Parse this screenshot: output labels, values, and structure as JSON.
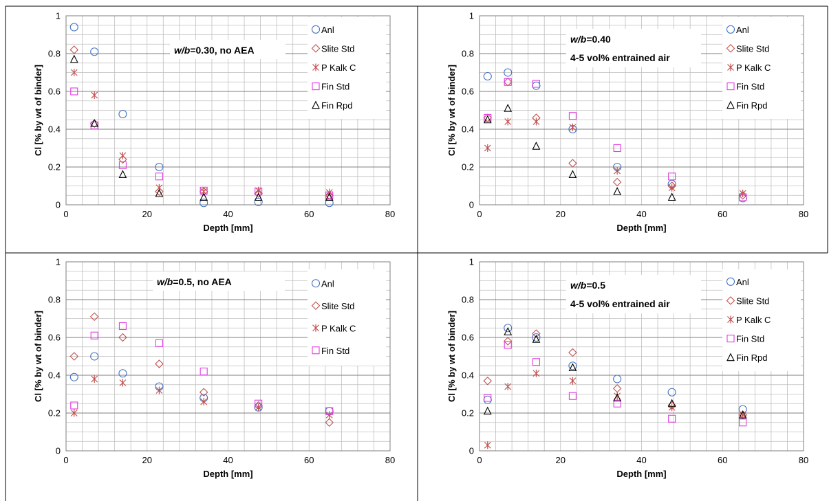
{
  "chart_data": [
    {
      "type": "scatter",
      "annotation": [
        {
          "text": "w/b",
          "italic": true
        },
        {
          "text": "=0.30, no AEA",
          "italic": false
        }
      ],
      "annotation_line2": "",
      "xlabel": "Depth [mm]",
      "ylabel": "Cl [% by wt of binder]",
      "xlim": [
        0,
        80
      ],
      "ylim": [
        0,
        1
      ],
      "xticks": [
        0,
        20,
        40,
        60,
        80
      ],
      "yticks": [
        0,
        0.2,
        0.4,
        0.6,
        0.8,
        1
      ],
      "xtick_labels": [
        "0",
        "20",
        "40",
        "60",
        "80"
      ],
      "ytick_labels": [
        "0",
        "0.2",
        "0.4",
        "0.6",
        "0.8",
        "1"
      ],
      "grid": true,
      "legend": "top-right",
      "series": [
        {
          "name": "Anl",
          "marker": "circle",
          "color": "#4472C4",
          "x": [
            2,
            7,
            14,
            23,
            34,
            47.5,
            65
          ],
          "y": [
            0.94,
            0.81,
            0.48,
            0.2,
            0.01,
            0.015,
            0.01
          ]
        },
        {
          "name": "Slite Std",
          "marker": "diamond",
          "color": "#C0504D",
          "x": [
            2,
            7,
            14,
            23,
            34,
            47.5,
            65
          ],
          "y": [
            0.82,
            0.43,
            0.24,
            0.07,
            0.07,
            0.06,
            0.05
          ]
        },
        {
          "name": "P Kalk C",
          "marker": "star",
          "color": "#C0504D",
          "x": [
            2,
            7,
            14,
            23,
            34,
            47.5,
            65
          ],
          "y": [
            0.7,
            0.58,
            0.26,
            0.09,
            0.07,
            0.075,
            0.065
          ]
        },
        {
          "name": "Fin Std",
          "marker": "square",
          "color": "#E23BE2",
          "x": [
            2,
            7,
            14,
            23,
            34,
            47.5,
            65
          ],
          "y": [
            0.6,
            0.42,
            0.21,
            0.15,
            0.075,
            0.07,
            0.05
          ]
        },
        {
          "name": "Fin Rpd",
          "marker": "triangle",
          "color": "#000000",
          "x": [
            2,
            7,
            14,
            23,
            34,
            47.5,
            65
          ],
          "y": [
            0.77,
            0.43,
            0.16,
            0.06,
            0.04,
            0.04,
            0.04
          ]
        }
      ]
    },
    {
      "type": "scatter",
      "annotation": [
        {
          "text": "w/b",
          "italic": true
        },
        {
          "text": "=0.40",
          "italic": false
        }
      ],
      "annotation_line2": "4-5 vol% entrained air",
      "xlabel": "Depth [mm]",
      "ylabel": "Cl [% by wt of binder]",
      "xlim": [
        0,
        80
      ],
      "ylim": [
        0,
        1
      ],
      "xticks": [
        0,
        20,
        40,
        60,
        80
      ],
      "yticks": [
        0,
        0.2,
        0.4,
        0.6,
        0.8,
        1
      ],
      "xtick_labels": [
        "0",
        "20",
        "40",
        "60",
        "80"
      ],
      "ytick_labels": [
        "0",
        "0.2",
        "0.4",
        "0.6",
        "0.8",
        "1"
      ],
      "grid": true,
      "legend": "top-right",
      "series": [
        {
          "name": "Anl",
          "marker": "circle",
          "color": "#4472C4",
          "x": [
            2,
            7,
            14,
            23,
            34,
            47.5,
            65
          ],
          "y": [
            0.68,
            0.7,
            0.63,
            0.4,
            0.2,
            0.11,
            0.035
          ]
        },
        {
          "name": "Slite Std",
          "marker": "diamond",
          "color": "#C0504D",
          "x": [
            2,
            7,
            14,
            23,
            34,
            47.5,
            65
          ],
          "y": [
            0.46,
            0.65,
            0.46,
            0.22,
            0.12,
            0.1,
            0.05
          ]
        },
        {
          "name": "P Kalk C",
          "marker": "star",
          "color": "#C0504D",
          "x": [
            2,
            7,
            14,
            23,
            34,
            47.5,
            65
          ],
          "y": [
            0.3,
            0.44,
            0.44,
            0.41,
            0.18,
            0.09,
            0.06
          ]
        },
        {
          "name": "Fin Std",
          "marker": "square",
          "color": "#E23BE2",
          "x": [
            2,
            7,
            14,
            23,
            34,
            47.5,
            65
          ],
          "y": [
            0.46,
            0.65,
            0.64,
            0.47,
            0.3,
            0.15,
            0.04
          ]
        },
        {
          "name": "Fin Rpd",
          "marker": "triangle",
          "color": "#000000",
          "x": [
            2,
            7,
            14,
            23,
            34,
            47.5
          ],
          "y": [
            0.45,
            0.51,
            0.31,
            0.16,
            0.07,
            0.04
          ]
        }
      ]
    },
    {
      "type": "scatter",
      "annotation": [
        {
          "text": "w/b",
          "italic": true
        },
        {
          "text": "=0.5, no AEA",
          "italic": false
        }
      ],
      "annotation_line2": "",
      "xlabel": "Depth [mm]",
      "ylabel": "Cl [% by wt of binder]",
      "xlim": [
        0,
        80
      ],
      "ylim": [
        0,
        1
      ],
      "xticks": [
        0,
        20,
        40,
        60,
        80
      ],
      "yticks": [
        0,
        0.2,
        0.4,
        0.6,
        0.8,
        1
      ],
      "xtick_labels": [
        "0",
        "20",
        "40",
        "60",
        "80"
      ],
      "ytick_labels": [
        "0",
        "0.2",
        "0.4",
        "0.6",
        "0.8",
        "1"
      ],
      "grid": true,
      "legend": "top-right",
      "series": [
        {
          "name": "Anl",
          "marker": "circle",
          "color": "#4472C4",
          "x": [
            2,
            7,
            14,
            23,
            34,
            47.5,
            65
          ],
          "y": [
            0.39,
            0.5,
            0.41,
            0.34,
            0.28,
            0.23,
            0.21
          ]
        },
        {
          "name": "Slite Std",
          "marker": "diamond",
          "color": "#C0504D",
          "x": [
            2,
            7,
            14,
            23,
            34,
            47.5,
            65
          ],
          "y": [
            0.5,
            0.71,
            0.6,
            0.46,
            0.31,
            0.24,
            0.15
          ]
        },
        {
          "name": "P Kalk C",
          "marker": "star",
          "color": "#C0504D",
          "x": [
            2,
            7,
            14,
            23,
            34,
            47.5,
            65
          ],
          "y": [
            0.2,
            0.38,
            0.36,
            0.32,
            0.26,
            0.23,
            0.19
          ]
        },
        {
          "name": "Fin Std",
          "marker": "square",
          "color": "#E23BE2",
          "x": [
            2,
            7,
            14,
            23,
            34,
            47.5,
            65
          ],
          "y": [
            0.24,
            0.61,
            0.66,
            0.57,
            0.42,
            0.25,
            0.21
          ]
        }
      ]
    },
    {
      "type": "scatter",
      "annotation": [
        {
          "text": "w/b",
          "italic": true
        },
        {
          "text": "=0.5",
          "italic": false
        }
      ],
      "annotation_line2": "4-5 vol% entrained air",
      "xlabel": "Depth [mm]",
      "ylabel": "Cl [% by wt of binder]",
      "xlim": [
        0,
        80
      ],
      "ylim": [
        0,
        1
      ],
      "xticks": [
        0,
        20,
        40,
        60,
        80
      ],
      "yticks": [
        0,
        0.2,
        0.4,
        0.6,
        0.8,
        1
      ],
      "xtick_labels": [
        "0",
        "20",
        "40",
        "60",
        "80"
      ],
      "ytick_labels": [
        "0",
        "0.2",
        "0.4",
        "0.6",
        "0.8",
        "1"
      ],
      "grid": true,
      "legend": "top-right",
      "series": [
        {
          "name": "Anl",
          "marker": "circle",
          "color": "#4472C4",
          "x": [
            2,
            7,
            14,
            23,
            34,
            47.5,
            65
          ],
          "y": [
            0.27,
            0.65,
            0.6,
            0.45,
            0.38,
            0.31,
            0.22
          ]
        },
        {
          "name": "Slite Std",
          "marker": "diamond",
          "color": "#C0504D",
          "x": [
            2,
            7,
            14,
            23,
            34,
            47.5,
            65
          ],
          "y": [
            0.37,
            0.58,
            0.62,
            0.52,
            0.33,
            0.24,
            0.19
          ]
        },
        {
          "name": "P Kalk C",
          "marker": "star",
          "color": "#C0504D",
          "x": [
            2,
            7,
            14,
            23,
            34,
            47.5,
            65
          ],
          "y": [
            0.03,
            0.34,
            0.41,
            0.37,
            0.29,
            0.23,
            0.19
          ]
        },
        {
          "name": "Fin Std",
          "marker": "square",
          "color": "#E23BE2",
          "x": [
            2,
            7,
            14,
            23,
            34,
            47.5,
            65
          ],
          "y": [
            0.28,
            0.56,
            0.47,
            0.29,
            0.25,
            0.17,
            0.15
          ]
        },
        {
          "name": "Fin Rpd",
          "marker": "triangle",
          "color": "#000000",
          "x": [
            2,
            7,
            14,
            23,
            34,
            47.5,
            65
          ],
          "y": [
            0.21,
            0.63,
            0.59,
            0.44,
            0.28,
            0.25,
            0.19
          ]
        }
      ]
    }
  ]
}
